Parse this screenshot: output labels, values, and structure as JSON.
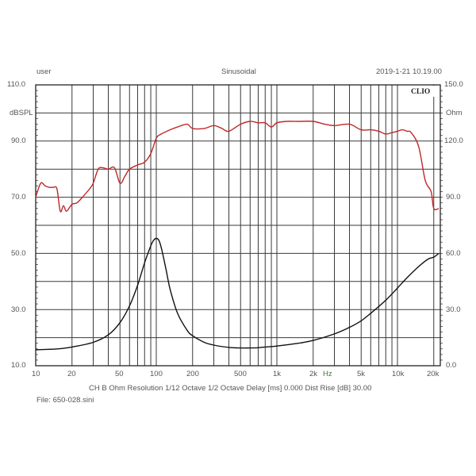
{
  "header": {
    "user": "user",
    "mode": "Sinusoidal",
    "datetime": "2019-1-21 10.19.00",
    "brand": "CLIO"
  },
  "axes": {
    "left_unit": "dBSPL",
    "right_unit": "Ohm",
    "x_unit": "Hz",
    "left_ticks": [
      "110.0",
      "90.0",
      "70.0",
      "50.0",
      "30.0",
      "10.0"
    ],
    "right_ticks": [
      "150.0",
      "120.0",
      "90.0",
      "60.0",
      "30.0",
      "0.0"
    ],
    "x_ticks": [
      "10",
      "20",
      "50",
      "100",
      "200",
      "500",
      "1k",
      "2k",
      "5k",
      "10k",
      "20k"
    ]
  },
  "footer": {
    "settings": "CH B   Ohm   Resolution 1/12 Octave   1/2 Octave   Delay [ms] 0.000   Dist Rise [dB] 30.00",
    "file": "File: 650-028.sini"
  },
  "colors": {
    "spl": "#c0282a",
    "impedance": "#111111",
    "grid": "#333333",
    "text": "#555555",
    "hz_label": "#3a7a3a"
  },
  "chart_data": {
    "type": "line",
    "title": "Sinusoidal",
    "xlabel": "Hz",
    "ylabel": "dBSPL",
    "y2label": "Ohm",
    "xscale": "log",
    "xlim": [
      10,
      22000
    ],
    "ylim": [
      10,
      110
    ],
    "y2lim": [
      0,
      150
    ],
    "grid": true,
    "series": [
      {
        "name": "SPL (dBSPL)",
        "axis": "left",
        "color": "#c0282a",
        "x": [
          10,
          11,
          12,
          13,
          14,
          15,
          16,
          17,
          18,
          20,
          22,
          25,
          28,
          30,
          33,
          36,
          40,
          45,
          50,
          55,
          60,
          70,
          80,
          90,
          100,
          110,
          130,
          150,
          180,
          200,
          250,
          300,
          350,
          400,
          500,
          600,
          700,
          800,
          900,
          1000,
          1200,
          1500,
          2000,
          2500,
          3000,
          4000,
          5000,
          6000,
          7000,
          8000,
          9000,
          10000,
          11000,
          12000,
          13000,
          15000,
          17000,
          19000,
          20000,
          22000
        ],
        "values": [
          70,
          75,
          74,
          73.5,
          73.5,
          73,
          65,
          67,
          65,
          67.5,
          68,
          70.5,
          73,
          75,
          80,
          80.5,
          80,
          80.5,
          75,
          77.5,
          80,
          81.5,
          82.5,
          85.5,
          91,
          92.5,
          94,
          95,
          96,
          94.5,
          94.5,
          95.5,
          94.5,
          93.5,
          96,
          97,
          96.5,
          96.5,
          95,
          96.5,
          97,
          97,
          97,
          96,
          95.5,
          96,
          94,
          94,
          93.5,
          92.5,
          93,
          93.5,
          94,
          93.5,
          93,
          88,
          76,
          72,
          66,
          66
        ]
      },
      {
        "name": "Impedance (Ohm)",
        "axis": "right",
        "color": "#111111",
        "x": [
          10,
          15,
          20,
          30,
          40,
          50,
          60,
          70,
          80,
          90,
          95,
          100,
          105,
          110,
          120,
          130,
          150,
          180,
          200,
          250,
          300,
          400,
          500,
          600,
          700,
          800,
          1000,
          1500,
          2000,
          3000,
          4000,
          5000,
          6000,
          8000,
          10000,
          12000,
          15000,
          18000,
          20000,
          22000
        ],
        "values": [
          8.5,
          9.0,
          10.0,
          12.5,
          16.5,
          23,
          32,
          43,
          55,
          64,
          67,
          68,
          67,
          63,
          52,
          41,
          28,
          19,
          16,
          12.5,
          11,
          9.8,
          9.5,
          9.5,
          9.6,
          10,
          10.5,
          12.0,
          13.5,
          17,
          20.5,
          24,
          28,
          35,
          41.5,
          47,
          53,
          57,
          58,
          60
        ]
      }
    ]
  }
}
